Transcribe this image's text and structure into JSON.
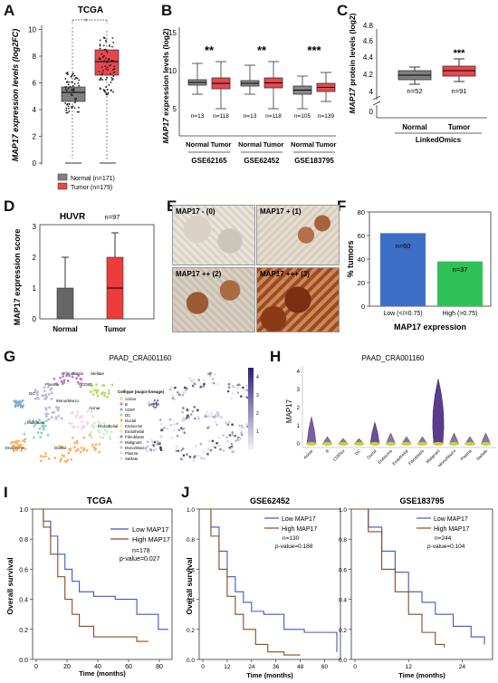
{
  "colors": {
    "normal": "#7f7f7f",
    "tumor": "#e8474d",
    "low": "#3f56c4",
    "high": "#8b4a22",
    "barLow": "#3d6fc9",
    "barHigh": "#2fc155",
    "violet": "#5b3c8f"
  },
  "A": {
    "label": "A",
    "title": "TCGA",
    "sig": "*",
    "ylabel": "MAP17 expression levels (log2FC)",
    "yticks": [
      "0",
      "2",
      "4",
      "6",
      "8",
      "10"
    ],
    "legend": [
      "Normal (n=171)",
      "Tumor (n=179)"
    ]
  },
  "B": {
    "label": "B",
    "ylabel": "MAP17 expression levels (log2)",
    "yticks": [
      "5",
      "10",
      "15"
    ],
    "groups": [
      {
        "name": "GSE62165",
        "sig": "**",
        "n": [
          "n=13",
          "n=118"
        ]
      },
      {
        "name": "GSE62452",
        "sig": "**",
        "n": [
          "n=13",
          "n=118"
        ]
      },
      {
        "name": "GSE183795",
        "sig": "***",
        "n": [
          "n=105",
          "n=139"
        ]
      }
    ],
    "xlabels": [
      "Normal",
      "Tumor"
    ]
  },
  "C": {
    "label": "C",
    "ylabel": "MAP17 protein levels (log2)",
    "yticks": [
      "0",
      "4",
      "4.2",
      "4.4",
      "4.6",
      "4.8"
    ],
    "sig": "***",
    "n": [
      "n=52",
      "n=91"
    ],
    "xlabels": [
      "Normal",
      "Tumor"
    ],
    "group": "LinkedOmics"
  },
  "D": {
    "label": "D",
    "title": "HUVR",
    "n": "n=97",
    "ylabel": "MAP17 expression score",
    "yticks": [
      "0",
      "1",
      "2",
      "3"
    ],
    "xlabels": [
      "Normal",
      "Tumor"
    ]
  },
  "E": {
    "label": "E",
    "captions": [
      "MAP17 - (0)",
      "MAP17 + (1)",
      "MAP17 ++ (2)",
      "MAP17 +++ (3)"
    ]
  },
  "F": {
    "label": "F",
    "ylabel": "% tumors",
    "yticks": [
      "0",
      "20",
      "40",
      "60",
      "80"
    ],
    "bars": [
      {
        "n": "n=60",
        "label": "Low (</=0.75)"
      },
      {
        "n": "n=37",
        "label": "High (>0.75)"
      }
    ],
    "xtitle": "MAP17 expression"
  },
  "G": {
    "label": "G",
    "title": "PAAD_CRA001160",
    "legendTitle": "Celltype (major-lineage)",
    "legend": [
      "Acinar",
      "B",
      "CD8T",
      "DC",
      "Ductal",
      "Endocrine",
      "Endothelial",
      "Fibroblasts",
      "Malignant",
      "Mono/Macro",
      "Plasma",
      "Stellate"
    ],
    "clusterLabels": [
      "Fibroblasts",
      "Stellate",
      "CD8T",
      "Plasma",
      "DC",
      "Mono/Macro",
      "Malignant",
      "Acinar",
      "Endothelial",
      "Endocrine",
      "Ductal"
    ],
    "scale": [
      "1",
      "2",
      "3",
      "4"
    ]
  },
  "H": {
    "label": "H",
    "title": "PAAD_CRA001160",
    "ylabel": "MAP17",
    "yticks": [
      "0",
      "1",
      "2",
      "3",
      "4"
    ],
    "xticks": [
      "Acinar",
      "B",
      "CD8Tex",
      "DC",
      "Ductal",
      "Endocrine",
      "Endothelial",
      "Fibroblasts",
      "Malignant",
      "Mono/Macro",
      "Plasma",
      "Stellate"
    ]
  },
  "I": {
    "label": "I",
    "title": "TCGA",
    "ylabel": "Overall survival",
    "xlabel": "Time (months)",
    "yticks": [
      "0.0",
      "0.2",
      "0.4",
      "0.6",
      "0.8",
      "1.0"
    ],
    "xticks": [
      "0",
      "20",
      "40",
      "60",
      "80"
    ],
    "legend": [
      "Low MAP17",
      "High MAP17"
    ],
    "n": "n=178",
    "p": "p-value=0.027"
  },
  "J": {
    "label": "J",
    "ylabel": "Overall survival",
    "xlabel": "Time (months)",
    "plots": [
      {
        "title": "GSE62452",
        "n": "n=130",
        "p": "p-value=0.188",
        "xticks": [
          "0",
          "12",
          "24",
          "36",
          "48",
          "60"
        ]
      },
      {
        "title": "GSE183795",
        "n": "n=244",
        "p": "p-value=0.104",
        "xticks": [
          "0",
          "12",
          "24"
        ]
      }
    ],
    "yticks": [
      "0.0",
      "0.2",
      "0.4",
      "0.6",
      "0.8",
      "1.0"
    ],
    "legend": [
      "Low MAP17",
      "High MAP17"
    ]
  }
}
